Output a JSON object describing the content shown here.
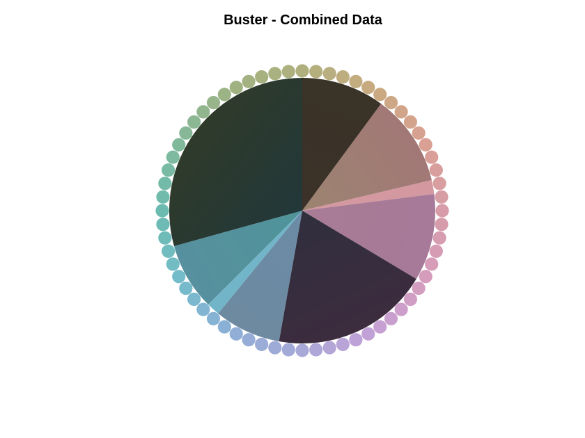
{
  "chart_data": {
    "type": "pie",
    "title": "Buster - Combined Data",
    "start_angle_deg": 0,
    "direction": "clockwise-from-north",
    "slices": [
      {
        "value": 10.1,
        "color": "#3b3128",
        "color_edge": "#3a3327"
      },
      {
        "value": 11.2,
        "color": "#9c8470",
        "color_edge": "#a27877"
      },
      {
        "value": 1.7,
        "color": "#d498a0",
        "color_edge": "#d498a0"
      },
      {
        "value": 10.6,
        "color": "#a87c95",
        "color_edge": "#a67a98"
      },
      {
        "value": 19.2,
        "color": "#302f3e",
        "color_edge": "#3c2c3e"
      },
      {
        "value": 8.1,
        "color": "#6b8ba6",
        "color_edge": "#6d8aa0"
      },
      {
        "value": 1.6,
        "color": "#72b4c8",
        "color_edge": "#72b4c8"
      },
      {
        "value": 8.2,
        "color": "#4f949a",
        "color_edge": "#57909e"
      },
      {
        "value": 29.3,
        "color": "#22383a",
        "color_edge": "#2f3a2a"
      }
    ],
    "outer_ring": {
      "dot_count": 64,
      "colors_by_angle": [
        {
          "deg": 0,
          "color": "#b0b07e"
        },
        {
          "deg": 30,
          "color": "#c8aa80"
        },
        {
          "deg": 60,
          "color": "#d9a092"
        },
        {
          "deg": 90,
          "color": "#d79ca8"
        },
        {
          "deg": 120,
          "color": "#d59cbd"
        },
        {
          "deg": 150,
          "color": "#c4a0d6"
        },
        {
          "deg": 180,
          "color": "#a9a9d8"
        },
        {
          "deg": 210,
          "color": "#8eaed6"
        },
        {
          "deg": 240,
          "color": "#74bccb"
        },
        {
          "deg": 270,
          "color": "#6cbbb0"
        },
        {
          "deg": 300,
          "color": "#82b99a"
        },
        {
          "deg": 330,
          "color": "#a0b282"
        },
        {
          "deg": 360,
          "color": "#b0b07e"
        }
      ]
    },
    "legend": "none",
    "grid": false
  }
}
